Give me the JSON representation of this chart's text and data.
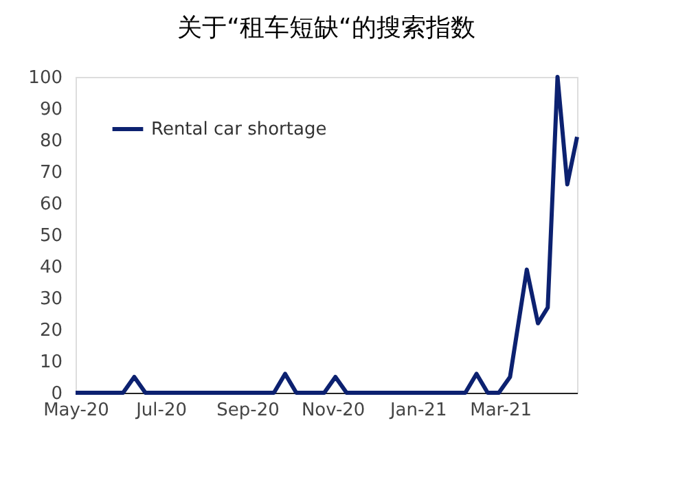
{
  "chart_data": {
    "type": "line",
    "title": "关于“租车短缺“的搜索指数",
    "x": [
      "2020-05-01",
      "2020-06-04",
      "2020-06-12",
      "2020-06-20",
      "2020-09-20",
      "2020-09-28",
      "2020-10-06",
      "2020-10-26",
      "2020-11-03",
      "2020-11-11",
      "2021-02-04",
      "2021-02-12",
      "2021-02-20",
      "2021-02-28",
      "2021-03-08",
      "2021-03-20",
      "2021-03-28",
      "2021-04-04",
      "2021-04-11",
      "2021-04-18",
      "2021-04-25"
    ],
    "series": [
      {
        "name": "Rental car shortage",
        "color": "#0c2170",
        "values": [
          0,
          0,
          5,
          0,
          0,
          6,
          0,
          0,
          5,
          0,
          0,
          6,
          0,
          0,
          5,
          39,
          22,
          27,
          100,
          66,
          81
        ]
      }
    ],
    "xlim": [
      "2020-05-01",
      "2021-04-25"
    ],
    "xticks": [
      {
        "value": "2020-05-01",
        "label": "May-20"
      },
      {
        "value": "2020-07-01",
        "label": "Jul-20"
      },
      {
        "value": "2020-09-01",
        "label": "Sep-20"
      },
      {
        "value": "2020-11-01",
        "label": "Nov-20"
      },
      {
        "value": "2021-01-01",
        "label": "Jan-21"
      },
      {
        "value": "2021-03-01",
        "label": "Mar-21"
      }
    ],
    "ylim": [
      0,
      100
    ],
    "yticks": [
      0,
      10,
      20,
      30,
      40,
      50,
      60,
      70,
      80,
      90,
      100
    ],
    "grid": false,
    "legend": "top left",
    "marker": "none",
    "line_style": "solid"
  }
}
